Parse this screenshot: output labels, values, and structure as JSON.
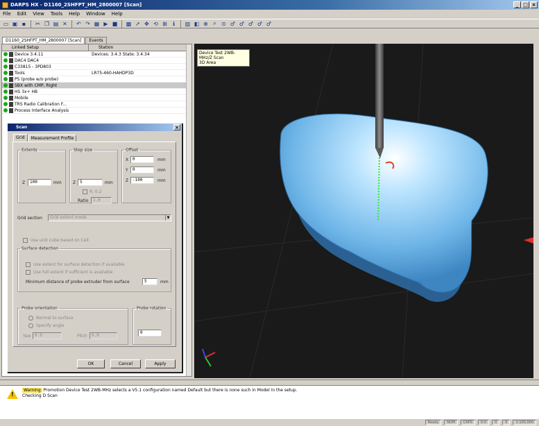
{
  "window": {
    "title": "DARPS HX - D1160_2SHFPT_HM_2800007 [Scan]"
  },
  "menu": [
    "File",
    "Edit",
    "View",
    "Tools",
    "Help",
    "Window",
    "Help"
  ],
  "document_tab": {
    "label": "D1160_2SHFPT_HM_2800007 [Scan]",
    "second": "Events"
  },
  "tree": {
    "headers": [
      "Linked Setup",
      "Station"
    ],
    "rows": [
      {
        "name": "Device 3.4.11",
        "value": "Devices: 3.4.3  State: 3.4.34"
      },
      {
        "name": "DAC4 DAC4",
        "value": ""
      },
      {
        "name": "C33815 - 3PD803",
        "value": ""
      },
      {
        "name": "Tools",
        "value": "LR75-460-HAHDP3D"
      },
      {
        "name": "P5 (probe w/o probe)",
        "value": ""
      },
      {
        "name": "SBX with CMP, Right",
        "value": ""
      },
      {
        "name": "HS 3x+ HB",
        "value": ""
      },
      {
        "name": "Mobile",
        "value": ""
      },
      {
        "name": "TRS Radio Calibration F...",
        "value": ""
      },
      {
        "name": "Process Interface Analysis",
        "value": ""
      }
    ]
  },
  "dialog": {
    "title": "Scan",
    "tabs": [
      "Grid",
      "Measurement Profile"
    ],
    "extents": {
      "legend": "Extents",
      "z_label": "Z",
      "z_value": "100",
      "unit": "mm"
    },
    "step_size": {
      "legend": "Step size",
      "z_label": "Z",
      "z_value": "5",
      "unit": "mm",
      "check_label": "R: 0.2",
      "ratio_label": "Ratio",
      "ratio_value": "1.0"
    },
    "offset": {
      "legend": "Offset",
      "x_label": "X",
      "x_value": "0",
      "y_label": "Y",
      "y_value": "0",
      "z_label": "Z",
      "z_value": "-100",
      "unit": "mm"
    },
    "grid_section_label": "Grid section",
    "grid_section_value": "Grid extent mode",
    "use_grid_label": "Use unit cube based on Cell",
    "surface": {
      "legend": "Surface detection",
      "opt1": "Use extent for surface detection if available",
      "opt2": "Use full extent if sufficient is available",
      "min_dist_label": "Minimum distance of probe extruder from surface",
      "min_dist_value": "5",
      "min_dist_unit": "mm"
    },
    "probe_orient": {
      "legend": "Probe orientation",
      "opt1": "Normal to surface",
      "opt2": "Specify angle",
      "yaw_label": "Yaw",
      "yaw_value": "0.0",
      "pitch_label": "Pitch",
      "pitch_value": "0.0"
    },
    "probe_rotation": {
      "legend": "Probe rotation",
      "value": "0"
    },
    "buttons": {
      "ok": "OK",
      "cancel": "Cancel",
      "apply": "Apply"
    }
  },
  "viewport": {
    "label_line1": "Device Test 2WB-MHz/Z Scan",
    "label_line2": "3D Area",
    "colors": {
      "background": "#1a1a1a",
      "body": "#7fc4f0",
      "probe": "#6a6a6a",
      "path": "#2ee82e"
    }
  },
  "log": {
    "tag": "Warning",
    "line1": "Promotion Device Test 2WB-MHz selects a V5.1 configuration named Default but there is none such in Model in the setup.",
    "line2": "Checking D Scan"
  },
  "status": [
    "Ready",
    "NUM",
    "CAPS",
    "0:0",
    "0",
    "0",
    "1:100,000"
  ]
}
